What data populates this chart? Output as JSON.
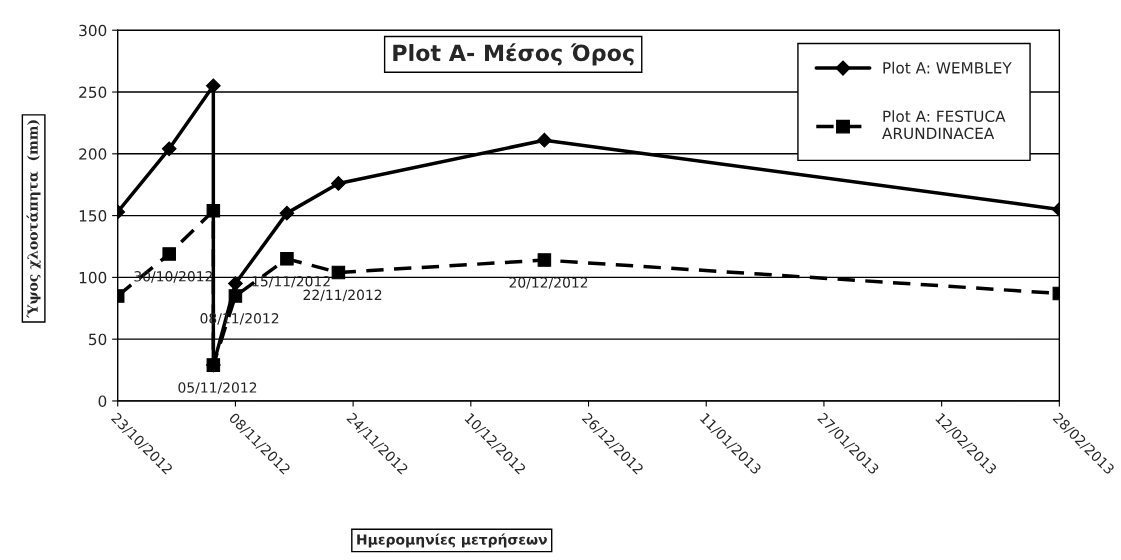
{
  "chart_data": {
    "type": "line",
    "title": "Plot A- Μέσος Όρος",
    "xlabel": "Ημερομηνίες μετρήσεων",
    "ylabel": "Ύψος χλοοτάπητα  (mm)",
    "x": [
      "2012-10-23",
      "2012-10-30",
      "2012-11-05",
      "2012-11-05",
      "2012-11-08",
      "2012-11-15",
      "2012-11-22",
      "2012-12-20",
      "2013-02-28"
    ],
    "series": [
      {
        "name": "Plot A: WEMBLEY",
        "color": "#000000",
        "marker": "diamond",
        "line_style": "solid",
        "values": [
          153,
          204,
          255,
          29,
          95,
          152,
          176,
          211,
          155
        ]
      },
      {
        "name": "Plot A: FESTUCA ARUNDINACEA",
        "color": "#000000",
        "marker": "square",
        "line_style": "dashed",
        "values": [
          85,
          119,
          154,
          29,
          85,
          115,
          104,
          114,
          87
        ]
      }
    ],
    "xlim": [
      "2012-10-23",
      "2013-02-28"
    ],
    "xticks": [
      {
        "value": "2012-10-23",
        "label": "23/10/2012"
      },
      {
        "value": "2012-11-08",
        "label": "08/11/2012"
      },
      {
        "value": "2012-11-24",
        "label": "24/11/2012"
      },
      {
        "value": "2012-12-10",
        "label": "10/12/2012"
      },
      {
        "value": "2012-12-26",
        "label": "26/12/2012"
      },
      {
        "value": "2013-01-11",
        "label": "11/01/2013"
      },
      {
        "value": "2013-01-27",
        "label": "27/01/2013"
      },
      {
        "value": "2013-02-12",
        "label": "12/02/2013"
      },
      {
        "value": "2013-02-28",
        "label": "28/02/2013"
      }
    ],
    "ylim": [
      0,
      300
    ],
    "yticks": [
      0,
      50,
      100,
      150,
      200,
      250,
      300
    ],
    "grid": "y",
    "legend": "top right",
    "annotations": [
      {
        "text": "30/10/2012",
        "x": "2012-10-30",
        "y": 119
      },
      {
        "text": "05/11/2012",
        "x": "2012-11-05",
        "y": 29
      },
      {
        "text": "08/11/2012",
        "x": "2012-11-08",
        "y": 85
      },
      {
        "text": "15/11/2012",
        "x": "2012-11-15",
        "y": 115
      },
      {
        "text": "22/11/2012",
        "x": "2012-11-22",
        "y": 104
      },
      {
        "text": "20/12/2012",
        "x": "2012-12-20",
        "y": 114
      }
    ]
  }
}
